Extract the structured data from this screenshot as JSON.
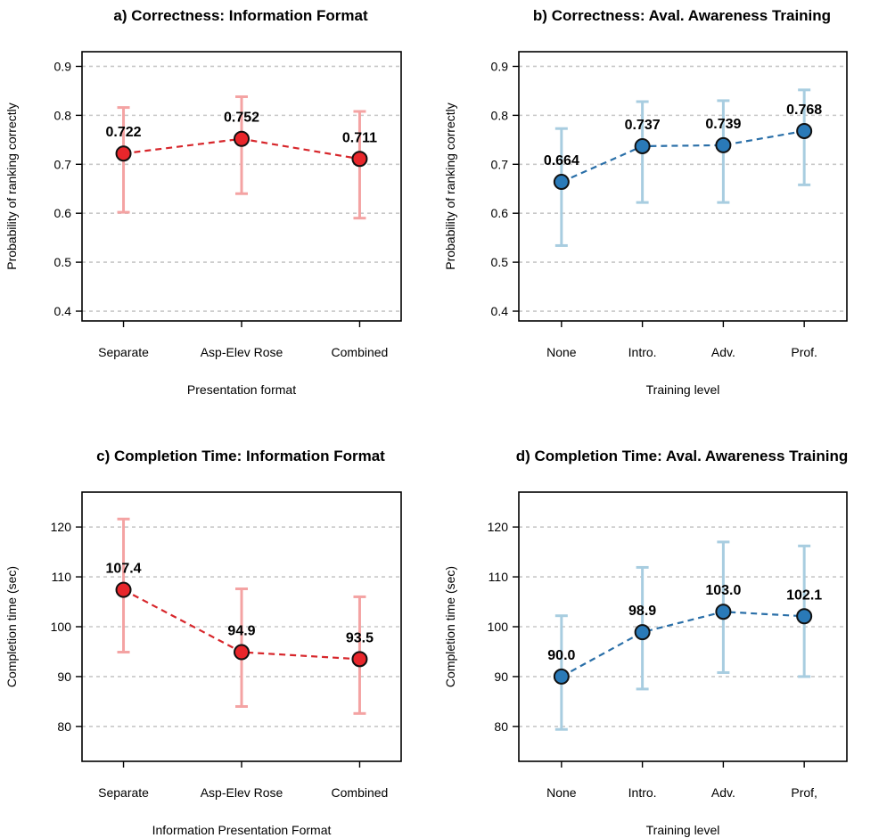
{
  "chart_data": [
    {
      "type": "line",
      "title": "a) Correctness: Information Format",
      "xlabel": "Presentation format",
      "ylabel": "Probability of ranking correctly",
      "categories": [
        "Separate",
        "Asp-Elev Rose",
        "Combined"
      ],
      "values": [
        0.722,
        0.752,
        0.711
      ],
      "value_labels": [
        "0.722",
        "0.752",
        "0.711"
      ],
      "ci_lower": [
        0.602,
        0.64,
        0.59
      ],
      "ci_upper": [
        0.816,
        0.838,
        0.808
      ],
      "ylim": [
        0.38,
        0.93
      ],
      "yticks": [
        0.4,
        0.5,
        0.6,
        0.7,
        0.8,
        0.9
      ],
      "ytick_labels": [
        "0.4",
        "0.5",
        "0.6",
        "0.7",
        "0.8",
        "0.9"
      ],
      "grid": true,
      "colors": {
        "point": "#e8262b",
        "line": "#d7262b",
        "errorbar": "#f4a3a3"
      }
    },
    {
      "type": "line",
      "title": "b) Correctness: Aval. Awareness Training",
      "xlabel": "Training level",
      "ylabel": "Probability of ranking correctly",
      "categories": [
        "None",
        "Intro.",
        "Adv.",
        "Prof."
      ],
      "values": [
        0.664,
        0.737,
        0.739,
        0.768
      ],
      "value_labels": [
        "0.664",
        "0.737",
        "0.739",
        "0.768"
      ],
      "ci_lower": [
        0.534,
        0.622,
        0.622,
        0.658
      ],
      "ci_upper": [
        0.773,
        0.828,
        0.83,
        0.852
      ],
      "ylim": [
        0.38,
        0.93
      ],
      "yticks": [
        0.4,
        0.5,
        0.6,
        0.7,
        0.8,
        0.9
      ],
      "ytick_labels": [
        "0.4",
        "0.5",
        "0.6",
        "0.7",
        "0.8",
        "0.9"
      ],
      "grid": true,
      "colors": {
        "point": "#2a7ab8",
        "line": "#2a6fa8",
        "errorbar": "#a8cde0"
      }
    },
    {
      "type": "line",
      "title": "c) Completion Time: Information Format",
      "xlabel": "Information Presentation Format",
      "ylabel": "Completion time (sec)",
      "categories": [
        "Separate",
        "Asp-Elev Rose",
        "Combined"
      ],
      "values": [
        107.4,
        94.9,
        93.5
      ],
      "value_labels": [
        "107.4",
        "94.9",
        "93.5"
      ],
      "ci_lower": [
        94.9,
        84.0,
        82.6
      ],
      "ci_upper": [
        121.6,
        107.6,
        106.0
      ],
      "ylim": [
        73,
        127
      ],
      "yticks": [
        80,
        90,
        100,
        110,
        120
      ],
      "ytick_labels": [
        "80",
        "90",
        "100",
        "110",
        "120"
      ],
      "grid": true,
      "colors": {
        "point": "#e8262b",
        "line": "#d7262b",
        "errorbar": "#f4a3a3"
      }
    },
    {
      "type": "line",
      "title": "d) Completion Time: Aval. Awareness Training",
      "xlabel": "Training level",
      "ylabel": "Completion time (sec)",
      "categories": [
        "None",
        "Intro.",
        "Adv.",
        "Prof,"
      ],
      "values": [
        90.0,
        98.9,
        103.0,
        102.1
      ],
      "value_labels": [
        "90.0",
        "98.9",
        "103.0",
        "102.1"
      ],
      "ci_lower": [
        79.4,
        87.5,
        90.8,
        90.0
      ],
      "ci_upper": [
        102.2,
        111.9,
        117.0,
        116.2
      ],
      "ylim": [
        73,
        127
      ],
      "yticks": [
        80,
        90,
        100,
        110,
        120
      ],
      "ytick_labels": [
        "80",
        "90",
        "100",
        "110",
        "120"
      ],
      "grid": true,
      "colors": {
        "point": "#2a7ab8",
        "line": "#2a6fa8",
        "errorbar": "#a8cde0"
      }
    }
  ]
}
